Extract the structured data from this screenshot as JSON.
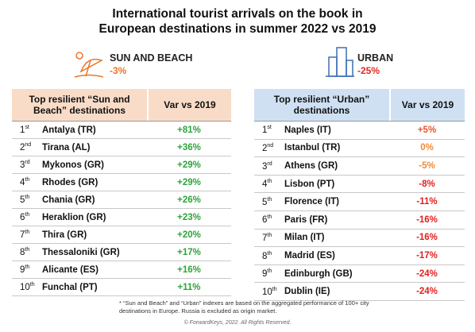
{
  "title_lines": [
    "International tourist arrivals on the book in",
    "European destinations in summer 2022 vs 2019"
  ],
  "panels": [
    {
      "label": "SUN AND BEACH",
      "change": "-3%",
      "change_color": "#e8762c",
      "header_color": "#f9dcc8",
      "table_header": [
        "Top resilient “Sun and Beach” destinations",
        "Var vs 2019"
      ],
      "rows": [
        {
          "rank": "1",
          "suffix": "st",
          "name": "Antalya (TR)",
          "var": "+81%",
          "color": "#2ea33a"
        },
        {
          "rank": "2",
          "suffix": "nd",
          "name": "Tirana (AL)",
          "var": "+36%",
          "color": "#2ea33a"
        },
        {
          "rank": "3",
          "suffix": "rd",
          "name": "Mykonos (GR)",
          "var": "+29%",
          "color": "#2ea33a"
        },
        {
          "rank": "4",
          "suffix": "th",
          "name": "Rhodes (GR)",
          "var": "+29%",
          "color": "#2ea33a"
        },
        {
          "rank": "5",
          "suffix": "th",
          "name": "Chania (GR)",
          "var": "+26%",
          "color": "#2ea33a"
        },
        {
          "rank": "6",
          "suffix": "th",
          "name": "Heraklion (GR)",
          "var": "+23%",
          "color": "#2ea33a"
        },
        {
          "rank": "7",
          "suffix": "th",
          "name": "Thira (GR)",
          "var": "+20%",
          "color": "#2ea33a"
        },
        {
          "rank": "8",
          "suffix": "th",
          "name": "Thessaloniki (GR)",
          "var": "+17%",
          "color": "#2ea33a"
        },
        {
          "rank": "9",
          "suffix": "th",
          "name": "Alicante (ES)",
          "var": "+16%",
          "color": "#2ea33a"
        },
        {
          "rank": "10",
          "suffix": "th",
          "name": "Funchal (PT)",
          "var": "+11%",
          "color": "#2ea33a"
        }
      ]
    },
    {
      "label": "URBAN",
      "change": "-25%",
      "change_color": "#e02a2a",
      "header_color": "#cfe0f3",
      "table_header": [
        "Top resilient “Urban” destinations",
        "Var vs 2019"
      ],
      "rows": [
        {
          "rank": "1",
          "suffix": "st",
          "name": "Naples (IT)",
          "var": "+5%",
          "color": "#e9552e"
        },
        {
          "rank": "2",
          "suffix": "nd",
          "name": "Istanbul (TR)",
          "var": "0%",
          "color": "#f08a35"
        },
        {
          "rank": "3",
          "suffix": "rd",
          "name": "Athens (GR)",
          "var": "-5%",
          "color": "#f08a35"
        },
        {
          "rank": "4",
          "suffix": "th",
          "name": "Lisbon (PT)",
          "var": "-8%",
          "color": "#e02020"
        },
        {
          "rank": "5",
          "suffix": "th",
          "name": "Florence (IT)",
          "var": "-11%",
          "color": "#e02020"
        },
        {
          "rank": "6",
          "suffix": "th",
          "name": "Paris (FR)",
          "var": "-16%",
          "color": "#e02020"
        },
        {
          "rank": "7",
          "suffix": "th",
          "name": "Milan (IT)",
          "var": "-16%",
          "color": "#e02020"
        },
        {
          "rank": "8",
          "suffix": "th",
          "name": "Madrid (ES)",
          "var": "-17%",
          "color": "#e02020"
        },
        {
          "rank": "9",
          "suffix": "th",
          "name": "Edinburgh (GB)",
          "var": "-24%",
          "color": "#e02020"
        },
        {
          "rank": "10",
          "suffix": "th",
          "name": "Dublin (IE)",
          "var": "-24%",
          "color": "#e02020"
        }
      ]
    }
  ],
  "footnote": [
    "* “Sun and Beach” and “Urban” indexes are based on the aggregated performance of 100+ city",
    "destinations in Europe. Russia is excluded as origin market."
  ],
  "copyright": "© ForwardKeys, 2022. All Rights Reserved."
}
